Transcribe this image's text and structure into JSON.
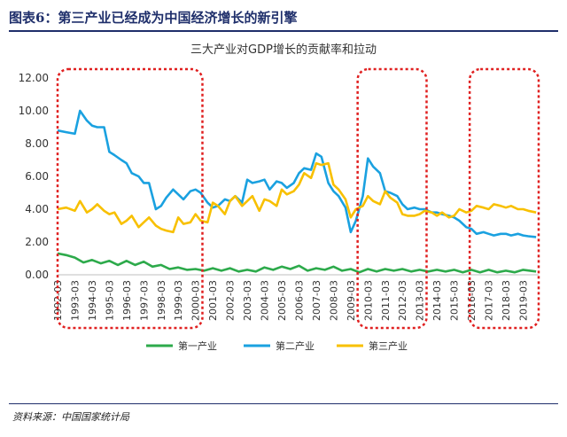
{
  "header": {
    "title": "图表6：第三产业已经成为中国经济增长的新引擎"
  },
  "source": "资料来源：中国国家统计局",
  "chart_data": {
    "type": "line",
    "title": "三大产业对GDP增长的贡献率和拉动",
    "ylim": [
      0,
      12
    ],
    "yticks": [
      "0.00",
      "2.00",
      "4.00",
      "6.00",
      "8.00",
      "10.00",
      "12.00"
    ],
    "xlim": [
      1992.0,
      2019.9
    ],
    "xticks": [
      1992,
      1993,
      1994,
      1995,
      1996,
      1997,
      1998,
      1999,
      2000,
      2001,
      2002,
      2003,
      2004,
      2005,
      2006,
      2007,
      2008,
      2009,
      2010,
      2011,
      2012,
      2013,
      2014,
      2015,
      2016,
      2017,
      2018,
      2019
    ],
    "xtick_suffix": "-03",
    "grid": false,
    "legend_position": "bottom",
    "highlight_ranges": [
      [
        1992.0,
        2000.4
      ],
      [
        2009.4,
        2013.4
      ],
      [
        2015.9,
        2019.9
      ]
    ],
    "colors": {
      "primary": "#2daa4b",
      "secondary": "#1aa1e0",
      "tertiary": "#f8c000",
      "highlight": "#e02020"
    },
    "series": [
      {
        "name": "第一产业",
        "x": [
          1992.0,
          1992.5,
          1993.0,
          1993.5,
          1994.0,
          1994.5,
          1995.0,
          1995.5,
          1996.0,
          1996.5,
          1997.0,
          1997.5,
          1998.0,
          1998.5,
          1999.0,
          1999.5,
          2000.0,
          2000.5,
          2001.0,
          2001.5,
          2002.0,
          2002.5,
          2003.0,
          2003.5,
          2004.0,
          2004.5,
          2005.0,
          2005.5,
          2006.0,
          2006.5,
          2007.0,
          2007.5,
          2008.0,
          2008.5,
          2009.0,
          2009.5,
          2010.0,
          2010.5,
          2011.0,
          2011.5,
          2012.0,
          2012.5,
          2013.0,
          2013.5,
          2014.0,
          2014.5,
          2015.0,
          2015.5,
          2016.0,
          2016.5,
          2017.0,
          2017.5,
          2018.0,
          2018.5,
          2019.0,
          2019.75
        ],
        "values": [
          1.3,
          1.2,
          1.05,
          0.75,
          0.9,
          0.7,
          0.85,
          0.6,
          0.85,
          0.6,
          0.8,
          0.5,
          0.6,
          0.35,
          0.45,
          0.3,
          0.35,
          0.25,
          0.4,
          0.25,
          0.4,
          0.2,
          0.3,
          0.2,
          0.45,
          0.3,
          0.5,
          0.35,
          0.55,
          0.25,
          0.4,
          0.3,
          0.5,
          0.25,
          0.35,
          0.15,
          0.35,
          0.2,
          0.35,
          0.25,
          0.35,
          0.2,
          0.3,
          0.2,
          0.3,
          0.2,
          0.3,
          0.15,
          0.3,
          0.15,
          0.3,
          0.15,
          0.25,
          0.15,
          0.3,
          0.2
        ]
      },
      {
        "name": "第二产业",
        "x": [
          1992.0,
          1992.5,
          1993.0,
          1993.3,
          1993.7,
          1994.0,
          1994.3,
          1994.7,
          1995.0,
          1995.3,
          1995.7,
          1996.0,
          1996.3,
          1996.7,
          1997.0,
          1997.3,
          1997.7,
          1998.0,
          1998.3,
          1998.7,
          1999.0,
          1999.3,
          1999.7,
          2000.0,
          2000.3,
          2000.7,
          2001.0,
          2001.3,
          2001.7,
          2002.0,
          2002.3,
          2002.7,
          2003.0,
          2003.3,
          2003.7,
          2004.0,
          2004.3,
          2004.7,
          2005.0,
          2005.3,
          2005.7,
          2006.0,
          2006.3,
          2006.7,
          2007.0,
          2007.3,
          2007.7,
          2008.0,
          2008.3,
          2008.7,
          2009.0,
          2009.3,
          2009.7,
          2010.0,
          2010.3,
          2010.7,
          2011.0,
          2011.3,
          2011.7,
          2012.0,
          2012.3,
          2012.7,
          2013.0,
          2013.3,
          2013.7,
          2014.0,
          2014.3,
          2014.7,
          2015.0,
          2015.3,
          2015.7,
          2016.0,
          2016.3,
          2016.7,
          2017.0,
          2017.3,
          2017.7,
          2018.0,
          2018.3,
          2018.7,
          2019.0,
          2019.3,
          2019.75
        ],
        "values": [
          8.8,
          8.7,
          8.6,
          10.0,
          9.4,
          9.1,
          9.0,
          9.0,
          7.5,
          7.3,
          7.0,
          6.8,
          6.2,
          6.0,
          5.6,
          5.6,
          4.0,
          4.2,
          4.7,
          5.2,
          4.9,
          4.6,
          5.1,
          5.2,
          5.0,
          4.4,
          4.1,
          4.2,
          4.6,
          4.5,
          4.8,
          4.4,
          5.8,
          5.6,
          5.7,
          5.8,
          5.2,
          5.7,
          5.6,
          5.3,
          5.6,
          6.2,
          6.5,
          6.4,
          7.4,
          7.2,
          5.6,
          5.1,
          4.8,
          4.1,
          2.6,
          3.3,
          4.8,
          7.1,
          6.6,
          6.2,
          5.1,
          5.0,
          4.8,
          4.3,
          4.0,
          4.1,
          4.0,
          4.0,
          3.8,
          3.8,
          3.7,
          3.6,
          3.5,
          3.3,
          2.9,
          2.8,
          2.5,
          2.6,
          2.5,
          2.4,
          2.5,
          2.5,
          2.4,
          2.5,
          2.4,
          2.35,
          2.3
        ]
      },
      {
        "name": "第三产业",
        "x": [
          1992.0,
          1992.5,
          1993.0,
          1993.3,
          1993.7,
          1994.0,
          1994.3,
          1994.7,
          1995.0,
          1995.3,
          1995.7,
          1996.0,
          1996.3,
          1996.7,
          1997.0,
          1997.3,
          1997.7,
          1998.0,
          1998.3,
          1998.7,
          1999.0,
          1999.3,
          1999.7,
          2000.0,
          2000.3,
          2000.7,
          2001.0,
          2001.3,
          2001.7,
          2002.0,
          2002.3,
          2002.7,
          2003.0,
          2003.3,
          2003.7,
          2004.0,
          2004.3,
          2004.7,
          2005.0,
          2005.3,
          2005.7,
          2006.0,
          2006.3,
          2006.7,
          2007.0,
          2007.3,
          2007.7,
          2008.0,
          2008.3,
          2008.7,
          2009.0,
          2009.3,
          2009.7,
          2010.0,
          2010.3,
          2010.7,
          2011.0,
          2011.3,
          2011.7,
          2012.0,
          2012.3,
          2012.7,
          2013.0,
          2013.3,
          2013.7,
          2014.0,
          2014.3,
          2014.7,
          2015.0,
          2015.3,
          2015.7,
          2016.0,
          2016.3,
          2016.7,
          2017.0,
          2017.3,
          2017.7,
          2018.0,
          2018.3,
          2018.7,
          2019.0,
          2019.3,
          2019.75
        ],
        "values": [
          4.0,
          4.1,
          3.9,
          4.5,
          3.8,
          4.0,
          4.3,
          3.9,
          3.7,
          3.8,
          3.1,
          3.3,
          3.6,
          2.9,
          3.2,
          3.5,
          3.0,
          2.8,
          2.7,
          2.6,
          3.5,
          3.1,
          3.2,
          3.7,
          3.3,
          3.2,
          4.4,
          4.2,
          3.7,
          4.5,
          4.8,
          4.2,
          4.5,
          4.8,
          3.9,
          4.6,
          4.5,
          4.2,
          5.2,
          4.9,
          5.1,
          5.5,
          6.2,
          5.9,
          6.8,
          6.7,
          6.8,
          5.5,
          5.2,
          4.6,
          3.5,
          4.0,
          4.2,
          4.8,
          4.5,
          4.3,
          5.1,
          4.7,
          4.4,
          3.7,
          3.6,
          3.6,
          3.7,
          3.9,
          3.8,
          3.6,
          3.8,
          3.5,
          3.6,
          4.0,
          3.8,
          3.9,
          4.2,
          4.1,
          4.0,
          4.3,
          4.2,
          4.1,
          4.2,
          4.0,
          4.0,
          3.9,
          3.8
        ]
      }
    ]
  }
}
